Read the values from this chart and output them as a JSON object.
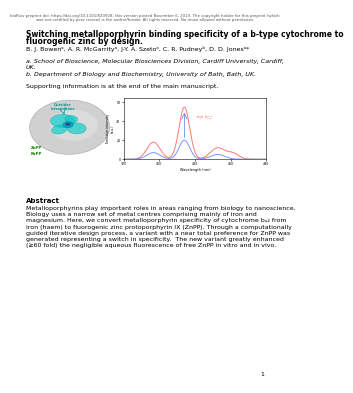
{
  "bioRxiv_line1": "bioRxiv preprint doi: https://doi.org/10.1101/820928; this version posted November 6, 2019. The copyright holder for this preprint (which",
  "bioRxiv_line2": "was not certified by peer review) is the author/funder. All rights reserved. No reuse allowed without permission.",
  "title_line1": "Switching metalloporphyrin binding specificity of a b-type cytochrome to",
  "title_line2": "fluorogenic zinc by design.",
  "authors": "B. J. Bowenᵃ, A. R. McGarrityᵃ, J-Y. A. Szetoᵃ, C. R. Pudneyᵇ, D. D. Jonesᵃ*",
  "affil_a": "a. School of Bioscience, Molecular Biosciences Division, Cardiff University, Cardiff,",
  "affil_a2": "UK.",
  "affil_b": "b. Department of Biology and Biochemistry, University of Bath, Bath, UK.",
  "supporting": "Supporting information is at the end of the main manuscript.",
  "abstract_title": "Abstract",
  "abs_line1": "Metalloporphyrins play important roles in areas ranging from biology to nanoscience.",
  "abs_line2": "Biology uses a narrow set of metal centres comprising mainly of iron and",
  "abs_line3": "magnesium. Here, we convert metalloporphyrin specificity of cytochrome bᵤ₂ from",
  "abs_line4": "iron (haem) to fluorogenic zinc protoporphyrin IX (ZnPP). Through a computationally",
  "abs_line5": "guided iterative design process, a variant with a near total preference for ZnPP was",
  "abs_line6": "generated representing a switch in specificity.  The new variant greatly enhanced",
  "abs_line7": "(≥60 fold) the negligible aqueous fluorescence of free ZnPP in vitro and in vivo.",
  "page_number": "1",
  "bg_color": "#ffffff",
  "text_color": "#000000",
  "header_color": "#555555",
  "title_fontsize": 5.5,
  "body_fontsize": 4.5,
  "header_fontsize": 2.8,
  "abstract_title_fontsize": 5.0
}
